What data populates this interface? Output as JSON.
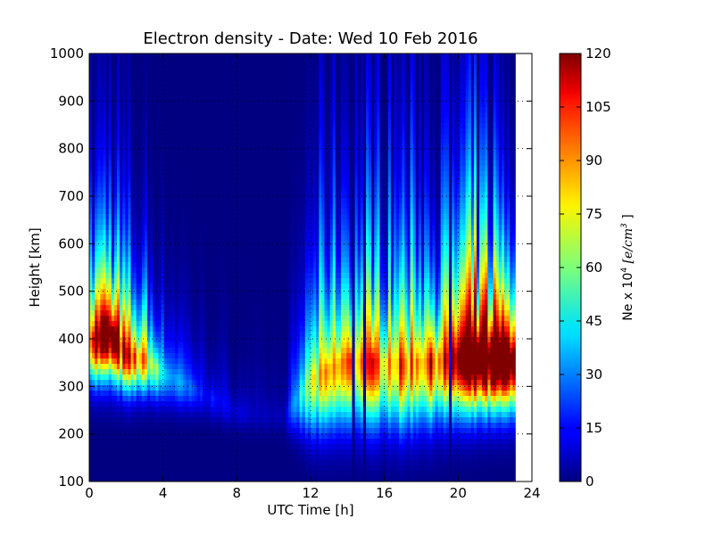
{
  "chart_data": {
    "type": "heatmap",
    "title": "Electron density - Date: Wed 10 Feb 2016",
    "xlabel": "UTC Time [h]",
    "ylabel": "Height [km]",
    "colorbar_label": "Ne x 10",
    "colorbar_label_exponent": "4",
    "colorbar_label_unit": "[e/cm",
    "colorbar_label_unit_exponent": "3",
    "colorbar_label_close": "]",
    "xlim": [
      0,
      24
    ],
    "ylim": [
      100,
      1000
    ],
    "x_ticks": [
      0,
      4,
      8,
      12,
      16,
      20,
      24
    ],
    "y_ticks": [
      100,
      200,
      300,
      400,
      500,
      600,
      700,
      800,
      900,
      1000
    ],
    "colorbar_range": [
      0,
      120
    ],
    "colorbar_ticks": [
      0,
      15,
      30,
      45,
      60,
      75,
      90,
      105,
      120
    ],
    "colormap": "jet",
    "data_end_hour": 23.0,
    "grid": true,
    "dark_gaps_hours": [
      14.2,
      14.9,
      19.5
    ],
    "density_profile_keypoints": [
      {
        "hour": 0.0,
        "peak_height_km": 400,
        "peak_value": 120,
        "layer_width_km": 110
      },
      {
        "hour": 1.0,
        "peak_height_km": 420,
        "peak_value": 130,
        "layer_width_km": 120
      },
      {
        "hour": 2.0,
        "peak_height_km": 370,
        "peak_value": 100,
        "layer_width_km": 100
      },
      {
        "hour": 3.0,
        "peak_height_km": 360,
        "peak_value": 80,
        "layer_width_km": 90
      },
      {
        "hour": 4.0,
        "peak_height_km": 330,
        "peak_value": 40,
        "layer_width_km": 80
      },
      {
        "hour": 6.0,
        "peak_height_km": 290,
        "peak_value": 18,
        "layer_width_km": 60
      },
      {
        "hour": 8.0,
        "peak_height_km": 250,
        "peak_value": 10,
        "layer_width_km": 50
      },
      {
        "hour": 10.5,
        "peak_height_km": 240,
        "peak_value": 6,
        "layer_width_km": 50
      },
      {
        "hour": 12.0,
        "peak_height_km": 320,
        "peak_value": 70,
        "layer_width_km": 140
      },
      {
        "hour": 14.0,
        "peak_height_km": 360,
        "peak_value": 90,
        "layer_width_km": 160
      },
      {
        "hour": 17.0,
        "peak_height_km": 350,
        "peak_value": 92,
        "layer_width_km": 160
      },
      {
        "hour": 19.0,
        "peak_height_km": 360,
        "peak_value": 100,
        "layer_width_km": 150
      },
      {
        "hour": 21.0,
        "peak_height_km": 370,
        "peak_value": 150,
        "layer_width_km": 140
      },
      {
        "hour": 23.0,
        "peak_height_km": 360,
        "peak_value": 130,
        "layer_width_km": 130
      }
    ]
  }
}
